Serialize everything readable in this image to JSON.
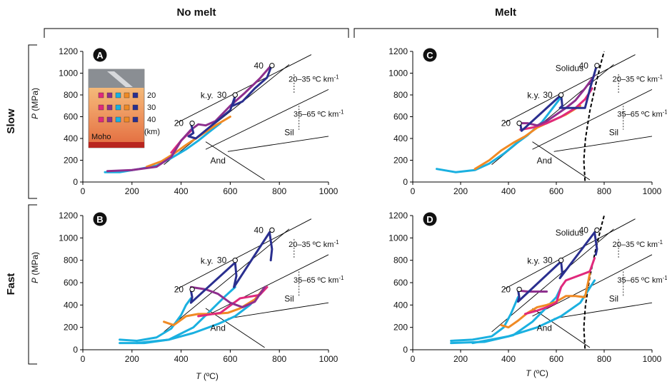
{
  "headers": {
    "col_left": "No melt",
    "col_right": "Melt",
    "row_top": "Slow",
    "row_bottom": "Fast"
  },
  "axes": {
    "x_ticks": [
      "0",
      "200",
      "400",
      "600",
      "800",
      "1000"
    ],
    "y_ticks": [
      "0",
      "200",
      "400",
      "600",
      "800",
      "1000",
      "1200"
    ],
    "ylabel_italic": "P",
    "ylabel_unit": " (MPa)",
    "xlabel_italic": "T",
    "xlabel_unit": " (ºC)"
  },
  "labels": {
    "ky": "k.y.",
    "sil": "Sil",
    "and": "And",
    "solidus": "Solidus",
    "grad1": "20–35 ºC km",
    "grad2": "35–65 ºC km",
    "sup": "-1",
    "depth20": "20",
    "depth30": "30",
    "depth40": "40"
  },
  "inset": {
    "depth_labels": [
      "20",
      "30",
      "40"
    ],
    "unit": "(km)",
    "moho": "Moho"
  },
  "colors": {
    "cyan": "#1ab0e0",
    "orange": "#f08a24",
    "magenta": "#e0297c",
    "purple": "#8e2f8e",
    "navy": "#2a2f8f"
  },
  "chart_data": [
    {
      "panel": "A",
      "type": "line",
      "xlabel": "T (ºC)",
      "ylabel": "P (MPa)",
      "xlim": [
        0,
        1000
      ],
      "ylim": [
        0,
        1200
      ],
      "melt": false,
      "series": [
        {
          "color": "cyan",
          "x": [
            90,
            150,
            230,
            300,
            360,
            420,
            470,
            520,
            560
          ],
          "y": [
            90,
            90,
            120,
            150,
            220,
            300,
            380,
            470,
            540
          ]
        },
        {
          "color": "orange",
          "x": [
            260,
            320,
            370,
            420,
            480,
            540,
            600
          ],
          "y": [
            140,
            190,
            260,
            340,
            430,
            520,
            600
          ]
        },
        {
          "color": "magenta",
          "x": [
            360,
            400,
            440
          ],
          "y": [
            270,
            380,
            470
          ]
        },
        {
          "color": "purple",
          "x": [
            100,
            200,
            300,
            360,
            400,
            440,
            470,
            500,
            540,
            600,
            660,
            720,
            770
          ],
          "y": [
            100,
            110,
            140,
            230,
            380,
            480,
            530,
            520,
            560,
            700,
            820,
            950,
            1080
          ]
        },
        {
          "color": "navy",
          "x": [
            440,
            450,
            430,
            460,
            600,
            620,
            610,
            650,
            700,
            750,
            770
          ],
          "y": [
            540,
            450,
            420,
            400,
            660,
            790,
            700,
            740,
            860,
            960,
            1080
          ]
        }
      ]
    },
    {
      "panel": "B",
      "type": "line",
      "xlabel": "T (ºC)",
      "ylabel": "P (MPa)",
      "xlim": [
        0,
        1000
      ],
      "ylim": [
        0,
        1200
      ],
      "melt": false,
      "series": [
        {
          "color": "cyan",
          "x": [
            150,
            220,
            300,
            360,
            400,
            420,
            440
          ],
          "y": [
            90,
            80,
            110,
            190,
            310,
            400,
            460
          ]
        },
        {
          "color": "cyan",
          "x": [
            150,
            250,
            350,
            450,
            520,
            580,
            620
          ],
          "y": [
            60,
            60,
            90,
            200,
            350,
            480,
            560
          ]
        },
        {
          "color": "cyan",
          "x": [
            220,
            350,
            450,
            550,
            620,
            680,
            730
          ],
          "y": [
            60,
            90,
            150,
            230,
            300,
            400,
            520
          ]
        },
        {
          "color": "orange",
          "x": [
            330,
            370,
            420,
            470,
            530,
            590,
            640,
            700,
            730
          ],
          "y": [
            250,
            220,
            300,
            320,
            320,
            330,
            370,
            450,
            530
          ]
        },
        {
          "color": "magenta",
          "x": [
            470,
            560,
            640,
            720,
            750
          ],
          "y": [
            300,
            330,
            460,
            490,
            560
          ]
        },
        {
          "color": "purple",
          "x": [
            440,
            500,
            550,
            600,
            650,
            700,
            740
          ],
          "y": [
            560,
            540,
            500,
            420,
            380,
            430,
            560
          ]
        },
        {
          "color": "navy",
          "x": [
            440,
            445,
            440,
            620,
            625,
            615,
            760,
            770,
            765
          ],
          "y": [
            530,
            470,
            420,
            780,
            660,
            560,
            1050,
            900,
            800
          ]
        }
      ]
    },
    {
      "panel": "C",
      "type": "line",
      "xlabel": "T (ºC)",
      "ylabel": "P (MPa)",
      "xlim": [
        0,
        1000
      ],
      "ylim": [
        0,
        1200
      ],
      "melt": true,
      "series": [
        {
          "color": "cyan",
          "x": [
            100,
            180,
            260,
            320,
            380,
            430,
            480,
            540,
            620
          ],
          "y": [
            120,
            90,
            110,
            170,
            260,
            350,
            430,
            550,
            780
          ]
        },
        {
          "color": "orange",
          "x": [
            260,
            320,
            370,
            420,
            470,
            520,
            580,
            640,
            700
          ],
          "y": [
            120,
            200,
            290,
            360,
            420,
            500,
            560,
            620,
            700
          ]
        },
        {
          "color": "magenta",
          "x": [
            450,
            500,
            560,
            620,
            680,
            720,
            750
          ],
          "y": [
            480,
            500,
            540,
            600,
            680,
            760,
            860
          ]
        },
        {
          "color": "purple",
          "x": [
            440,
            480,
            520,
            560,
            600,
            640,
            680,
            720,
            760
          ],
          "y": [
            540,
            540,
            520,
            560,
            620,
            680,
            750,
            860,
            980
          ]
        },
        {
          "color": "navy",
          "x": [
            450,
            455,
            620,
            625,
            615,
            720,
            740,
            770
          ],
          "y": [
            530,
            470,
            800,
            700,
            680,
            680,
            850,
            1080
          ]
        }
      ]
    },
    {
      "panel": "D",
      "type": "line",
      "xlabel": "T (ºC)",
      "ylabel": "P (MPa)",
      "xlim": [
        0,
        1000
      ],
      "ylim": [
        0,
        1200
      ],
      "melt": true,
      "series": [
        {
          "color": "cyan",
          "x": [
            160,
            250,
            330,
            380,
            410,
            430,
            440
          ],
          "y": [
            80,
            90,
            120,
            200,
            320,
            420,
            470
          ]
        },
        {
          "color": "cyan",
          "x": [
            160,
            300,
            420,
            500,
            560,
            600,
            620
          ],
          "y": [
            60,
            70,
            130,
            250,
            380,
            470,
            560
          ]
        },
        {
          "color": "cyan",
          "x": [
            250,
            400,
            520,
            620,
            700,
            760
          ],
          "y": [
            60,
            120,
            200,
            300,
            420,
            620
          ]
        },
        {
          "color": "orange",
          "x": [
            370,
            400,
            440,
            480,
            520,
            560,
            600,
            640,
            680,
            720,
            740
          ],
          "y": [
            220,
            200,
            260,
            330,
            380,
            400,
            430,
            480,
            480,
            470,
            680
          ]
        },
        {
          "color": "magenta",
          "x": [
            470,
            520,
            560,
            600,
            620,
            640,
            740,
            760
          ],
          "y": [
            320,
            350,
            380,
            420,
            560,
            620,
            700,
            820
          ]
        },
        {
          "color": "purple",
          "x": [
            440,
            480,
            520,
            560
          ],
          "y": [
            530,
            520,
            520,
            520
          ]
        },
        {
          "color": "navy",
          "x": [
            440,
            445,
            440,
            620,
            625,
            615,
            760,
            770,
            765
          ],
          "y": [
            540,
            470,
            430,
            790,
            680,
            640,
            1050,
            900,
            850
          ]
        }
      ]
    }
  ]
}
